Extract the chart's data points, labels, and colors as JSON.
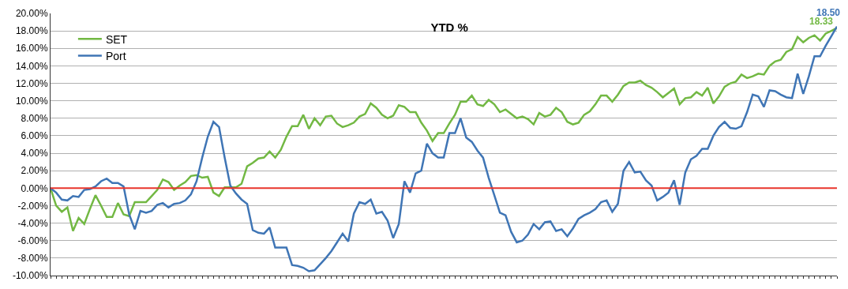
{
  "chart_data": {
    "type": "line",
    "title": "YTD %",
    "categories": [
      null,
      null,
      null,
      null,
      null,
      null,
      null,
      null,
      null,
      null,
      null,
      null,
      null,
      null,
      null,
      null,
      null,
      null,
      null,
      null,
      null,
      null,
      null,
      null,
      null,
      null,
      null,
      null,
      null,
      null,
      null,
      null,
      null,
      null,
      null,
      null,
      null,
      null,
      null,
      null,
      null,
      null,
      null,
      null,
      null,
      null,
      null,
      null,
      null,
      null,
      null,
      null,
      null,
      null,
      null,
      null,
      null,
      null,
      null,
      null,
      null,
      null,
      null,
      null,
      null,
      null,
      null,
      null,
      null,
      null,
      null,
      null,
      null,
      null,
      null,
      null,
      null,
      null,
      null,
      null,
      null,
      null,
      null,
      null,
      null,
      null,
      null,
      null,
      null,
      null,
      null,
      null,
      null,
      null,
      null,
      null,
      null,
      null,
      null,
      null,
      null,
      null,
      null,
      null,
      null,
      null,
      null,
      null,
      null,
      null,
      null,
      null,
      null,
      null,
      null,
      null,
      null,
      null,
      null,
      null,
      null,
      null,
      null,
      null,
      null,
      null,
      null,
      null,
      null,
      null,
      null,
      null,
      null,
      null,
      null,
      null,
      null,
      null,
      null,
      null,
      null
    ],
    "series": [
      {
        "name": "SET",
        "color": "#72b843",
        "values": [
          0,
          -2.0,
          -2.7,
          -2.2,
          -4.9,
          -3.4,
          -4.1,
          -2.4,
          -0.8,
          -2.0,
          -3.3,
          -3.3,
          -1.7,
          -3.0,
          -3.2,
          -1.6,
          -1.6,
          -1.6,
          -0.9,
          -0.2,
          1.0,
          0.7,
          -0.2,
          0.3,
          0.7,
          1.4,
          1.5,
          1.2,
          1.3,
          -0.5,
          -0.9,
          0.1,
          0.1,
          0.1,
          0.5,
          2.5,
          2.9,
          3.4,
          3.5,
          4.2,
          3.5,
          4.4,
          5.9,
          7.1,
          7.1,
          8.4,
          6.8,
          8.0,
          7.2,
          8.2,
          8.3,
          7.4,
          7.0,
          7.2,
          7.5,
          8.2,
          8.5,
          9.7,
          9.2,
          8.4,
          8.0,
          8.3,
          9.5,
          9.3,
          8.7,
          8.7,
          7.5,
          6.6,
          5.4,
          6.3,
          6.3,
          7.4,
          8.4,
          9.9,
          9.9,
          10.6,
          9.6,
          9.4,
          10.1,
          9.6,
          8.7,
          9.0,
          8.5,
          8.0,
          8.2,
          7.9,
          7.3,
          8.6,
          8.2,
          8.4,
          9.2,
          8.7,
          7.6,
          7.3,
          7.5,
          8.4,
          8.8,
          9.6,
          10.6,
          10.6,
          9.9,
          10.7,
          11.7,
          12.1,
          12.1,
          12.3,
          11.8,
          11.5,
          11.0,
          10.4,
          10.9,
          11.4,
          9.6,
          10.3,
          10.4,
          11.0,
          10.6,
          11.5,
          9.7,
          10.5,
          11.6,
          12.0,
          12.2,
          13.0,
          12.6,
          12.8,
          13.1,
          13.0,
          14.0,
          14.5,
          14.7,
          15.6,
          15.9,
          17.3,
          16.7,
          17.2,
          17.5,
          16.9,
          17.7,
          18.0,
          18.33
        ],
        "value_labels": [
          null,
          null,
          null,
          null,
          null,
          null,
          null,
          null,
          null,
          null,
          null,
          null,
          null,
          null,
          null,
          null,
          null,
          null,
          null,
          null,
          null,
          null,
          null,
          null,
          null,
          null,
          null,
          null,
          null,
          null,
          null,
          null,
          null,
          null,
          null,
          null,
          null,
          null,
          null,
          null,
          null,
          null,
          null,
          null,
          null,
          null,
          null,
          null,
          null,
          null,
          null,
          null,
          null,
          null,
          null,
          null,
          null,
          null,
          null,
          null,
          null,
          null,
          null,
          null,
          null,
          null,
          null,
          null,
          null,
          null,
          null,
          null,
          null,
          null,
          null,
          null,
          null,
          null,
          null,
          null,
          null,
          null,
          null,
          null,
          null,
          null,
          null,
          null,
          null,
          null,
          null,
          null,
          null,
          null,
          null,
          null,
          null,
          null,
          null,
          null,
          null,
          null,
          null,
          null,
          null,
          null,
          null,
          null,
          null,
          null,
          null,
          null,
          null,
          null,
          null,
          null,
          null,
          null,
          null,
          null,
          null,
          null,
          null,
          null,
          null,
          null,
          null,
          null,
          null,
          null,
          null,
          null,
          null,
          null,
          null,
          null,
          null,
          null,
          null,
          null,
          "18.33"
        ]
      },
      {
        "name": "Port",
        "color": "#3f75b5",
        "values": [
          0,
          -0.5,
          -1.3,
          -1.4,
          -0.9,
          -1.0,
          -0.2,
          -0.1,
          0.2,
          0.8,
          1.1,
          0.6,
          0.6,
          0.2,
          -3.0,
          -4.7,
          -2.6,
          -2.8,
          -2.6,
          -1.9,
          -1.7,
          -2.2,
          -1.8,
          -1.7,
          -1.4,
          -0.7,
          0.8,
          3.5,
          5.9,
          7.6,
          7.0,
          3.5,
          0.3,
          -0.6,
          -1.3,
          -1.8,
          -4.8,
          -5.1,
          -5.2,
          -4.5,
          -6.8,
          -6.8,
          -6.8,
          -8.8,
          -8.9,
          -9.1,
          -9.5,
          -9.4,
          -8.7,
          -8.0,
          -7.2,
          -6.2,
          -5.2,
          -6.1,
          -2.9,
          -1.6,
          -1.8,
          -1.3,
          -2.9,
          -2.7,
          -3.7,
          -5.7,
          -4.1,
          0.8,
          -0.5,
          1.7,
          2.0,
          5.1,
          4.0,
          3.5,
          3.5,
          6.3,
          6.3,
          8.0,
          5.8,
          5.3,
          4.3,
          3.5,
          1.2,
          -0.8,
          -2.8,
          -3.1,
          -5.0,
          -6.2,
          -6.0,
          -5.3,
          -4.1,
          -4.7,
          -3.9,
          -3.8,
          -4.9,
          -4.7,
          -5.5,
          -4.6,
          -3.5,
          -3.1,
          -2.8,
          -2.4,
          -1.6,
          -1.4,
          -2.7,
          -1.8,
          2.0,
          3.0,
          1.8,
          1.9,
          0.9,
          0.3,
          -1.4,
          -1.0,
          -0.5,
          0.9,
          -1.9,
          1.8,
          3.3,
          3.7,
          4.5,
          4.5,
          6.0,
          7.0,
          7.6,
          6.9,
          6.8,
          7.1,
          8.7,
          10.7,
          10.5,
          9.3,
          11.2,
          11.1,
          10.7,
          10.4,
          10.3,
          13.1,
          10.8,
          12.8,
          15.1,
          15.1,
          16.3,
          17.4,
          18.5
        ],
        "value_labels": [
          null,
          null,
          null,
          null,
          null,
          null,
          null,
          null,
          null,
          null,
          null,
          null,
          null,
          null,
          null,
          null,
          null,
          null,
          null,
          null,
          null,
          null,
          null,
          null,
          null,
          null,
          null,
          null,
          null,
          null,
          null,
          null,
          null,
          null,
          null,
          null,
          null,
          null,
          null,
          null,
          null,
          null,
          null,
          null,
          null,
          null,
          null,
          null,
          null,
          null,
          null,
          null,
          null,
          null,
          null,
          null,
          null,
          null,
          null,
          null,
          null,
          null,
          null,
          null,
          null,
          null,
          null,
          null,
          null,
          null,
          null,
          null,
          null,
          null,
          null,
          null,
          null,
          null,
          null,
          null,
          null,
          null,
          null,
          null,
          null,
          null,
          null,
          null,
          null,
          null,
          null,
          null,
          null,
          null,
          null,
          null,
          null,
          null,
          null,
          null,
          null,
          null,
          null,
          null,
          null,
          null,
          null,
          null,
          null,
          null,
          null,
          null,
          null,
          null,
          null,
          null,
          null,
          null,
          null,
          null,
          null,
          null,
          null,
          null,
          null,
          null,
          null,
          null,
          null,
          null,
          null,
          null,
          null,
          null,
          null,
          null,
          null,
          null,
          null,
          null,
          "18.50"
        ]
      }
    ],
    "ylim": [
      -10,
      20
    ],
    "yticks": [
      {
        "value": -10,
        "label": "-10.00%"
      },
      {
        "value": -8,
        "label": "-8.00%"
      },
      {
        "value": -6,
        "label": "-6.00%"
      },
      {
        "value": -4,
        "label": "-4.00%"
      },
      {
        "value": -2,
        "label": "-2.00%"
      },
      {
        "value": 0,
        "label": "0.00%"
      },
      {
        "value": 2,
        "label": "2.00%"
      },
      {
        "value": 4,
        "label": "4.00%"
      },
      {
        "value": 6,
        "label": "6.00%"
      },
      {
        "value": 8,
        "label": "8.00%"
      },
      {
        "value": 10,
        "label": "10.00%"
      },
      {
        "value": 12,
        "label": "12.00%"
      },
      {
        "value": 14,
        "label": "14.00%"
      },
      {
        "value": 16,
        "label": "16.00%"
      },
      {
        "value": 18,
        "label": "18.00%"
      },
      {
        "value": 20,
        "label": "20.00%"
      }
    ],
    "ref_lines": [
      {
        "axis": "y",
        "value": 0,
        "color": "#e8352b"
      }
    ],
    "grid": "y",
    "legend": "top left",
    "marker": "none",
    "line_style": "solid",
    "tick_labels": "y"
  }
}
